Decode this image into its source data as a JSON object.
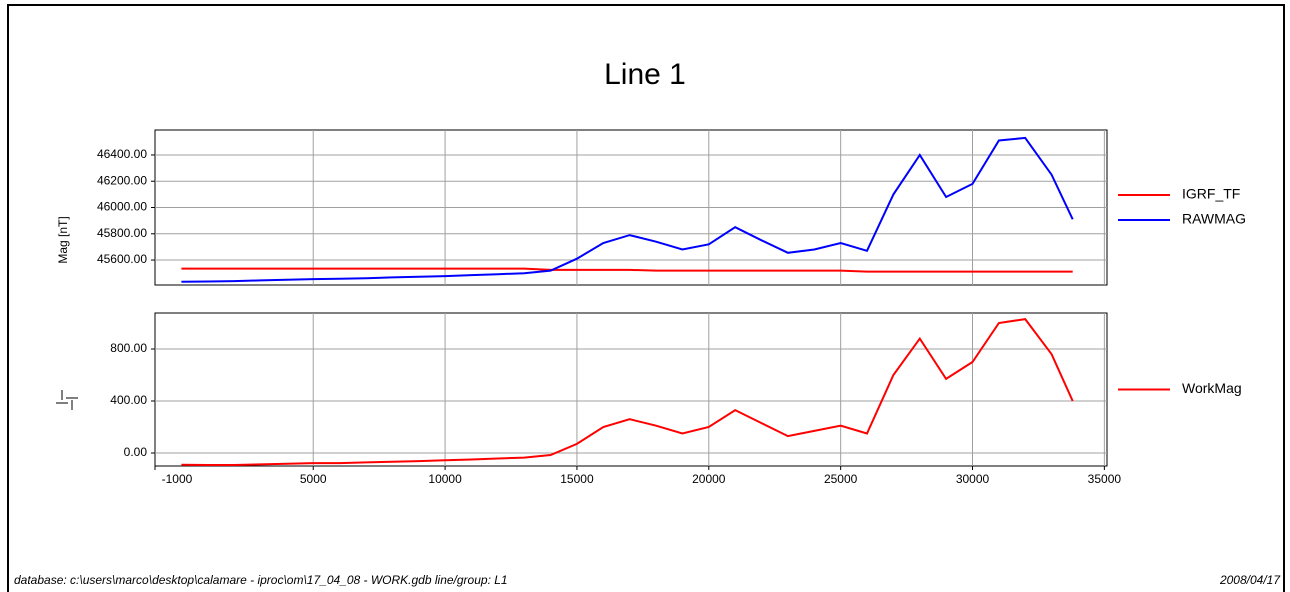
{
  "title": "Line 1",
  "footer": {
    "left": "database: c:\\users\\marco\\desktop\\calamare - iproc\\om\\17_04_08 - WORK.gdb   line/group: L1",
    "right": "2008/04/17"
  },
  "chart_data": [
    {
      "type": "line",
      "ylabel": "Mag [nT]",
      "x": [
        0,
        1000,
        2000,
        3000,
        4000,
        5000,
        6000,
        7000,
        8000,
        9000,
        10000,
        11000,
        12000,
        13000,
        14000,
        15000,
        16000,
        17000,
        18000,
        19000,
        20000,
        21000,
        22000,
        23000,
        24000,
        25000,
        26000,
        27000,
        28000,
        29000,
        30000,
        31000,
        32000,
        33000,
        33800
      ],
      "xlim": [
        -1000,
        35100
      ],
      "ylim": [
        45410,
        46590
      ],
      "yticks": [
        {
          "value": 45600,
          "label": "45600.00"
        },
        {
          "value": 45800,
          "label": "45800.00"
        },
        {
          "value": 46000,
          "label": "46000.00"
        },
        {
          "value": 46200,
          "label": "46200.00"
        },
        {
          "value": 46400,
          "label": "46400.00"
        }
      ],
      "grid": true,
      "series": [
        {
          "name": "IGRF_TF",
          "color": "#ff0000",
          "values": [
            45535,
            45535,
            45535,
            45535,
            45535,
            45535,
            45535,
            45535,
            45535,
            45535,
            45535,
            45535,
            45535,
            45535,
            45525,
            45525,
            45525,
            45525,
            45520,
            45520,
            45520,
            45520,
            45520,
            45520,
            45520,
            45520,
            45512,
            45512,
            45512,
            45512,
            45512,
            45512,
            45512,
            45512,
            45512
          ]
        },
        {
          "name": "RAWMAG",
          "color": "#0000ff",
          "values": [
            45435,
            45437,
            45440,
            45445,
            45450,
            45455,
            45458,
            45462,
            45468,
            45473,
            45478,
            45485,
            45492,
            45500,
            45520,
            45610,
            45730,
            45790,
            45740,
            45680,
            45720,
            45850,
            45750,
            45655,
            45680,
            45730,
            45670,
            46100,
            46400,
            46080,
            46180,
            46510,
            46530,
            46250,
            45910
          ]
        }
      ]
    },
    {
      "type": "line",
      "x": [
        0,
        1000,
        2000,
        3000,
        4000,
        5000,
        6000,
        7000,
        8000,
        9000,
        10000,
        11000,
        12000,
        13000,
        14000,
        15000,
        16000,
        17000,
        18000,
        19000,
        20000,
        21000,
        22000,
        23000,
        24000,
        25000,
        26000,
        27000,
        28000,
        29000,
        30000,
        31000,
        32000,
        33000,
        33800
      ],
      "xlim": [
        -1000,
        35100
      ],
      "xticks": [
        -1000,
        5000,
        10000,
        15000,
        20000,
        25000,
        30000,
        35000
      ],
      "ylim": [
        -100,
        1077
      ],
      "yticks": [
        {
          "value": 0,
          "label": "0.00"
        },
        {
          "value": 400,
          "label": "400.00"
        },
        {
          "value": 800,
          "label": "800.00"
        }
      ],
      "grid": true,
      "series": [
        {
          "name": "WorkMag",
          "color": "#ff0000",
          "values": [
            -90,
            -92,
            -92,
            -88,
            -82,
            -78,
            -78,
            -72,
            -68,
            -62,
            -55,
            -50,
            -42,
            -35,
            -15,
            70,
            200,
            260,
            210,
            150,
            200,
            330,
            230,
            130,
            170,
            210,
            150,
            600,
            880,
            570,
            700,
            1000,
            1030,
            760,
            400
          ]
        }
      ]
    }
  ]
}
